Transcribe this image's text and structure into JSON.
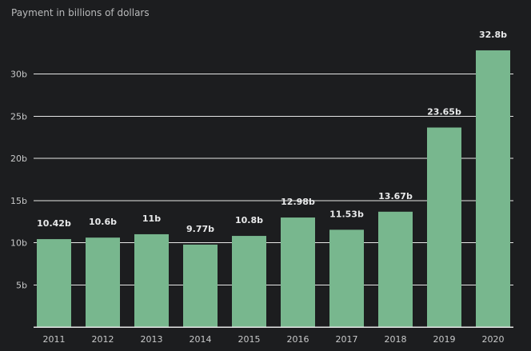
{
  "chart_data": {
    "type": "bar",
    "ylabel": "Payment in billions of dollars",
    "categories": [
      "2011",
      "2012",
      "2013",
      "2014",
      "2015",
      "2016",
      "2017",
      "2018",
      "2019",
      "2020"
    ],
    "values": [
      10.42,
      10.6,
      11,
      9.77,
      10.8,
      12.98,
      11.53,
      13.67,
      23.65,
      32.8
    ],
    "data_labels": [
      "10.42b",
      "10.6b",
      "11b",
      "9.77b",
      "10.8b",
      "12.98b",
      "11.53b",
      "13.67b",
      "23.65b",
      "32.8b"
    ],
    "yticks": [
      5,
      10,
      15,
      20,
      25,
      30
    ],
    "ytick_labels": [
      "5b",
      "10b",
      "15b",
      "20b",
      "25b",
      "30b"
    ],
    "ylim": [
      0,
      35
    ],
    "grid": true,
    "colors": {
      "bar": "#78b78e",
      "background": "#1c1d1f",
      "grid": "#e6e6e6"
    }
  }
}
